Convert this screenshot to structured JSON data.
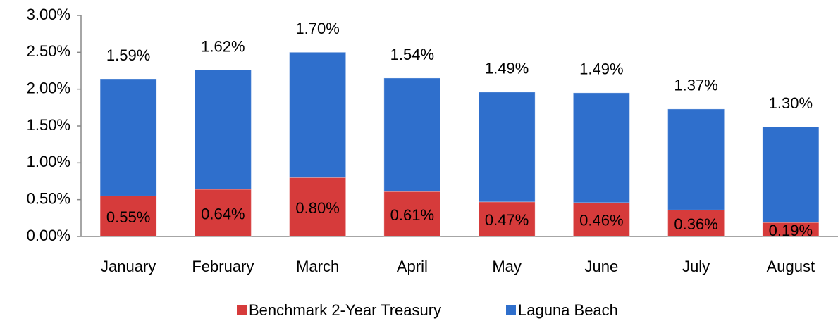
{
  "chart_data": {
    "type": "stacked_bar",
    "categories": [
      "January",
      "February",
      "March",
      "April",
      "May",
      "June",
      "July",
      "August"
    ],
    "series": [
      {
        "name": "Benchmark 2-Year Treasury",
        "color": "#d63b3b",
        "values": [
          0.55,
          0.64,
          0.8,
          0.61,
          0.47,
          0.46,
          0.36,
          0.19
        ],
        "value_labels": [
          "0.55%",
          "0.64%",
          "0.80%",
          "0.61%",
          "0.47%",
          "0.46%",
          "0.36%",
          "0.19%"
        ]
      },
      {
        "name": "Laguna Beach",
        "color": "#2f6fcc",
        "values": [
          1.59,
          1.62,
          1.7,
          1.54,
          1.49,
          1.49,
          1.37,
          1.3
        ],
        "value_labels": [
          "1.59%",
          "1.62%",
          "1.70%",
          "1.54%",
          "1.49%",
          "1.49%",
          "1.37%",
          "1.30%"
        ]
      }
    ],
    "ylim": [
      0,
      3
    ],
    "yticks": [
      {
        "value": 0,
        "label": "0.00%"
      },
      {
        "value": 0.5,
        "label": "0.50%"
      },
      {
        "value": 1,
        "label": "1.00%"
      },
      {
        "value": 1.5,
        "label": "1.50%"
      },
      {
        "value": 2,
        "label": "2.00%"
      },
      {
        "value": 2.5,
        "label": "2.50%"
      },
      {
        "value": 3,
        "label": "3.00%"
      }
    ],
    "legend": "bottom"
  }
}
